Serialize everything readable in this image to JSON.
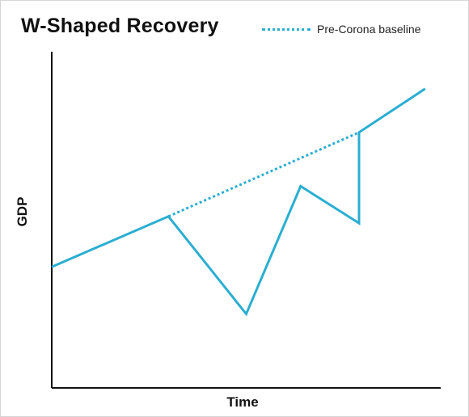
{
  "chart_data": {
    "type": "line",
    "title": "W-Shaped Recovery",
    "xlabel": "Time",
    "ylabel": "GDP",
    "xlim": [
      0,
      10
    ],
    "ylim": [
      0,
      10
    ],
    "grid": false,
    "axes_ticks": false,
    "legend": {
      "placement": "top-right",
      "entries": [
        "Pre-Corona baseline"
      ]
    },
    "series": [
      {
        "style": "solid",
        "color": "#2aaed1",
        "x": [
          0,
          3.0,
          5.0,
          6.4,
          7.9,
          7.9,
          9.6
        ],
        "y": [
          3.6,
          5.1,
          2.2,
          6.0,
          4.9,
          7.6,
          8.9
        ]
      },
      {
        "name": "Pre-Corona baseline",
        "style": "dotted",
        "color": "#2aaed1",
        "x": [
          3.0,
          7.9
        ],
        "y": [
          5.1,
          7.6
        ]
      }
    ]
  }
}
